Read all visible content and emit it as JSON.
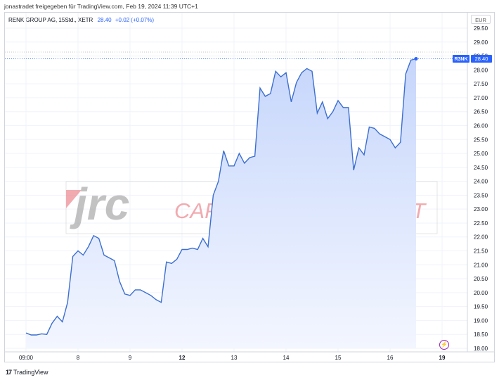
{
  "caption": "jonastradet freigegeben für TradingView.com, Feb 19, 2024 11:39 UTC+1",
  "legend": {
    "symbol": "RENK GROUP AG, 15Std., XETR",
    "last": "28.40",
    "change": "+0.02 (+0.07%)"
  },
  "currency": "EUR",
  "footer": {
    "brand": "TradingView",
    "logo_icon": "tradingview-logo-icon"
  },
  "watermark": {
    "brand": "jrc",
    "text": "CAPITAL MANAGEMENT"
  },
  "colors": {
    "line": "#3c6fd0",
    "fill_top": "#c6d6fb",
    "fill_bottom": "#f3f6ff",
    "label_bg": "#2962ff"
  },
  "chart_data": {
    "type": "area",
    "ylim": [
      18.0,
      29.5
    ],
    "y_ticks": [
      "18.00",
      "18.50",
      "19.00",
      "19.50",
      "20.00",
      "20.50",
      "21.00",
      "21.50",
      "22.00",
      "22.50",
      "23.00",
      "23.50",
      "24.00",
      "24.50",
      "25.00",
      "25.50",
      "26.00",
      "26.50",
      "27.00",
      "27.50",
      "28.00",
      "28.50",
      "29.00",
      "29.50"
    ],
    "x_ticks": [
      {
        "label": "09:00",
        "bold": false,
        "index": 0
      },
      {
        "label": "8",
        "bold": false,
        "index": 10
      },
      {
        "label": "9",
        "bold": false,
        "index": 20
      },
      {
        "label": "12",
        "bold": true,
        "index": 30
      },
      {
        "label": "13",
        "bold": false,
        "index": 40
      },
      {
        "label": "14",
        "bold": false,
        "index": 50
      },
      {
        "label": "15",
        "bold": false,
        "index": 60
      },
      {
        "label": "16",
        "bold": false,
        "index": 70
      },
      {
        "label": "19",
        "bold": true,
        "index": 80
      }
    ],
    "series": [
      {
        "values": [
          18.55,
          18.48,
          18.48,
          18.52,
          18.5,
          18.9,
          19.15,
          18.95,
          19.65,
          21.3,
          21.5,
          21.35,
          21.65,
          22.05,
          21.95,
          21.35,
          21.25,
          21.15,
          20.4,
          19.95,
          19.9,
          20.1,
          20.1,
          20.0,
          19.9,
          19.75,
          19.65,
          21.1,
          21.05,
          21.2,
          21.55,
          21.55,
          21.6,
          21.55,
          21.95,
          21.65,
          23.5,
          24.0,
          25.1,
          24.55,
          24.55,
          25.0,
          24.65,
          24.85,
          24.9,
          27.35,
          27.05,
          27.15,
          27.95,
          27.75,
          27.9,
          26.85,
          27.55,
          27.9,
          28.05,
          27.95,
          26.45,
          26.85,
          26.25,
          26.5,
          26.9,
          26.65,
          26.65,
          24.4,
          25.2,
          24.95,
          25.95,
          25.9,
          25.7,
          25.6,
          25.5,
          25.2,
          25.4,
          27.85,
          28.35,
          28.4
        ]
      }
    ],
    "last_value": 28.4,
    "last_label": "R3NK",
    "last_value_label": "28.40"
  }
}
